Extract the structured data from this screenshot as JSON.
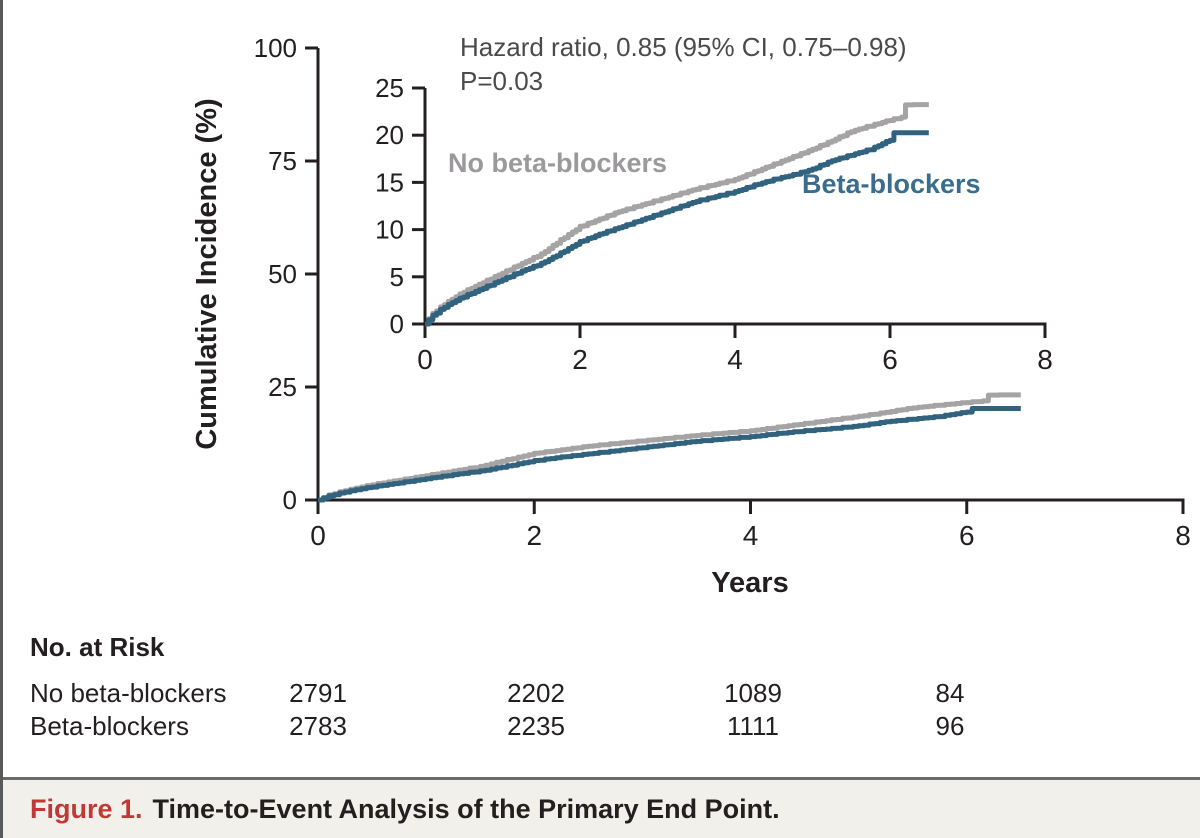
{
  "chart_data": {
    "type": "line",
    "description": "Kaplan-Meier cumulative incidence curves with inset on expanded y-scale",
    "xlabel": "Years",
    "ylabel": "Cumulative Incidence (%)",
    "main_axis": {
      "xlim": [
        0,
        8
      ],
      "ylim": [
        0,
        100
      ],
      "xticks": [
        0,
        2,
        4,
        6,
        8
      ],
      "yticks": [
        0,
        25,
        50,
        75,
        100
      ]
    },
    "inset_axis": {
      "xlim": [
        0,
        8
      ],
      "ylim": [
        0,
        25
      ],
      "xticks": [
        0,
        2,
        4,
        6,
        8
      ],
      "yticks": [
        0,
        5,
        10,
        15,
        20,
        25
      ]
    },
    "annotation": {
      "line1": "Hazard ratio, 0.85 (95% CI, 0.75–0.98)",
      "line2": "P=0.03"
    },
    "legend_position": "inside-inset",
    "grid": false,
    "series": [
      {
        "name": "No beta-blockers",
        "line_color": "#a5a3a4",
        "label_color": "#9b999c",
        "points": [
          [
            0,
            0
          ],
          [
            0.1,
            1.1
          ],
          [
            0.25,
            2.1
          ],
          [
            0.4,
            2.9
          ],
          [
            0.5,
            3.4
          ],
          [
            0.75,
            4.4
          ],
          [
            1,
            5.4
          ],
          [
            1.25,
            6.4
          ],
          [
            1.5,
            7.4
          ],
          [
            1.75,
            8.9
          ],
          [
            2,
            10.3
          ],
          [
            2.25,
            11.1
          ],
          [
            2.5,
            11.9
          ],
          [
            2.75,
            12.5
          ],
          [
            3,
            13.1
          ],
          [
            3.25,
            13.7
          ],
          [
            3.5,
            14.3
          ],
          [
            3.75,
            14.8
          ],
          [
            4,
            15.3
          ],
          [
            4.25,
            16.1
          ],
          [
            4.5,
            16.9
          ],
          [
            4.75,
            17.7
          ],
          [
            5,
            18.5
          ],
          [
            5.25,
            19.4
          ],
          [
            5.5,
            20.4
          ],
          [
            5.75,
            21.0
          ],
          [
            6,
            21.6
          ],
          [
            6.15,
            21.9
          ],
          [
            6.18,
            23.2
          ],
          [
            6.5,
            23.2
          ]
        ]
      },
      {
        "name": "Beta-blockers",
        "line_color": "#31627e",
        "label_color": "#3a6d8d",
        "points": [
          [
            0,
            0
          ],
          [
            0.1,
            0.9
          ],
          [
            0.25,
            1.8
          ],
          [
            0.4,
            2.5
          ],
          [
            0.5,
            2.9
          ],
          [
            0.75,
            3.8
          ],
          [
            1,
            4.7
          ],
          [
            1.25,
            5.6
          ],
          [
            1.5,
            6.4
          ],
          [
            1.75,
            7.5
          ],
          [
            2,
            8.7
          ],
          [
            2.25,
            9.5
          ],
          [
            2.5,
            10.2
          ],
          [
            2.75,
            10.9
          ],
          [
            3,
            11.6
          ],
          [
            3.25,
            12.3
          ],
          [
            3.5,
            13.0
          ],
          [
            3.75,
            13.5
          ],
          [
            4,
            14.0
          ],
          [
            4.25,
            14.7
          ],
          [
            4.5,
            15.3
          ],
          [
            4.75,
            15.8
          ],
          [
            5,
            16.4
          ],
          [
            5.25,
            17.3
          ],
          [
            5.5,
            17.9
          ],
          [
            5.75,
            18.5
          ],
          [
            6,
            19.5
          ],
          [
            6.05,
            20.2
          ],
          [
            6.5,
            20.2
          ]
        ]
      }
    ]
  },
  "risk_table": {
    "title": "No. at Risk",
    "time_points": [
      0,
      2,
      4,
      6
    ],
    "rows": [
      {
        "label": "No beta-blockers",
        "values": [
          "2791",
          "2202",
          "1089",
          "84"
        ]
      },
      {
        "label": "Beta-blockers",
        "values": [
          "2783",
          "2235",
          "1111",
          "96"
        ]
      }
    ]
  },
  "caption": {
    "label": "Figure 1.",
    "text": "Time-to-Event Analysis of the Primary End Point."
  },
  "colors": {
    "ink": "#231f20",
    "annotation_text": "#4a4a4c",
    "caption_label_red": "#bf3a36",
    "caption_background": "#f2f0ea",
    "divider_gray": "#6a6b6d",
    "gray_series": "#a5a3a4",
    "teal_series": "#31627e"
  }
}
